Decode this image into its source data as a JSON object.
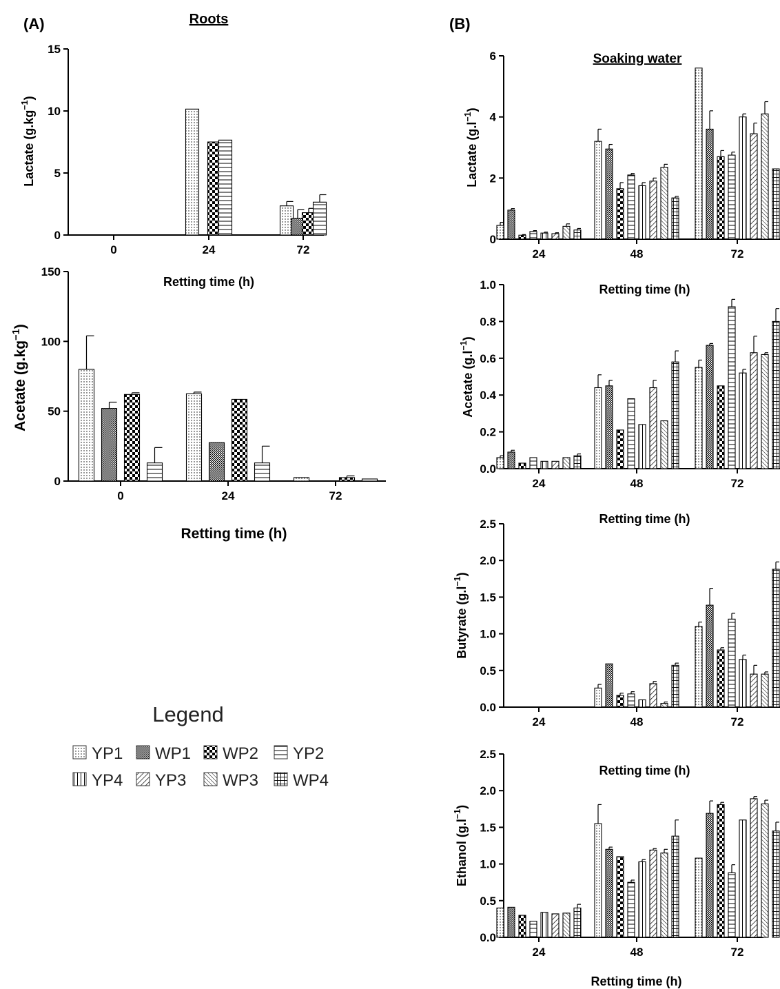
{
  "panels": {
    "A": {
      "label": "(A)",
      "title": "Roots"
    },
    "B": {
      "label": "(B)",
      "title": "Soaking water"
    }
  },
  "legend": {
    "title": "Legend",
    "items": [
      {
        "name": "YP1",
        "pattern": "dots"
      },
      {
        "name": "WP1",
        "pattern": "fine-check"
      },
      {
        "name": "WP2",
        "pattern": "checker"
      },
      {
        "name": "YP2",
        "pattern": "hlines"
      },
      {
        "name": "YP4",
        "pattern": "vlines"
      },
      {
        "name": "YP3",
        "pattern": "diag-right"
      },
      {
        "name": "WP3",
        "pattern": "diag-left"
      },
      {
        "name": "WP4",
        "pattern": "grid"
      }
    ]
  },
  "chart_data": [
    {
      "id": "roots-lactate",
      "panel": "A",
      "type": "bar",
      "ylabel": "Lactate (g.kg",
      "ylabel_sup": "−1",
      "ylabel_end": ")",
      "xlabel": "Retting time (h)",
      "categories": [
        "0",
        "24",
        "72"
      ],
      "ylim": [
        0,
        15
      ],
      "yticks": [
        "0",
        "5",
        "10",
        "15"
      ],
      "tick_values": [
        0,
        5,
        10,
        15
      ],
      "series": [
        {
          "name": "YP1",
          "values": [
            0,
            10.15,
            2.35
          ],
          "errors": [
            0,
            0,
            0.35
          ]
        },
        {
          "name": "WP1",
          "values": [
            0,
            0,
            1.35
          ],
          "errors": [
            0,
            0,
            0.7
          ]
        },
        {
          "name": "WP2",
          "values": [
            0,
            7.5,
            1.8
          ],
          "errors": [
            0,
            0,
            0.35
          ]
        },
        {
          "name": "YP2",
          "values": [
            0,
            7.65,
            2.65
          ],
          "errors": [
            0,
            0,
            0.6
          ]
        }
      ]
    },
    {
      "id": "roots-acetate",
      "panel": "A",
      "type": "bar",
      "ylabel": "Acetate (g.kg",
      "ylabel_sup": "−1",
      "ylabel_end": ")",
      "xlabel": "Retting time (h)",
      "categories": [
        "0",
        "24",
        "72"
      ],
      "ylim": [
        0,
        150
      ],
      "yticks": [
        "0",
        "50",
        "100",
        "150"
      ],
      "tick_values": [
        0,
        50,
        100,
        150
      ],
      "series": [
        {
          "name": "YP1",
          "values": [
            80,
            62.5,
            2.5
          ],
          "errors": [
            24,
            1.2,
            0
          ]
        },
        {
          "name": "WP1",
          "values": [
            52,
            27.5,
            0
          ],
          "errors": [
            4.5,
            0,
            0
          ]
        },
        {
          "name": "WP2",
          "values": [
            62,
            58.5,
            2.5
          ],
          "errors": [
            1.2,
            0,
            1.2
          ]
        },
        {
          "name": "YP2",
          "values": [
            13,
            13,
            1.5
          ],
          "errors": [
            11,
            12,
            0
          ]
        }
      ]
    },
    {
      "id": "water-lactate",
      "panel": "B",
      "type": "bar",
      "ylabel": "Lactate (g.l",
      "ylabel_sup": "−1",
      "ylabel_end": ")",
      "xlabel": "Retting time (h)",
      "categories": [
        "24",
        "48",
        "72"
      ],
      "ylim": [
        0,
        6
      ],
      "yticks": [
        "0",
        "2",
        "4",
        "6"
      ],
      "tick_values": [
        0,
        2,
        4,
        6
      ],
      "series": [
        {
          "name": "YP1",
          "values": [
            0.45,
            3.2,
            5.6
          ],
          "errors": [
            0.1,
            0.4,
            0
          ]
        },
        {
          "name": "WP1",
          "values": [
            0.95,
            2.95,
            3.6
          ],
          "errors": [
            0.05,
            0.15,
            0.6
          ]
        },
        {
          "name": "WP2",
          "values": [
            0.13,
            1.65,
            2.7
          ],
          "errors": [
            0.02,
            0.2,
            0.2
          ]
        },
        {
          "name": "YP2",
          "values": [
            0.25,
            2.1,
            2.75
          ],
          "errors": [
            0.03,
            0.05,
            0.1
          ]
        },
        {
          "name": "YP4",
          "values": [
            0.2,
            1.75,
            4.0
          ],
          "errors": [
            0.03,
            0.1,
            0.1
          ]
        },
        {
          "name": "YP3",
          "values": [
            0.18,
            1.9,
            3.45
          ],
          "errors": [
            0.03,
            0.1,
            0.35
          ]
        },
        {
          "name": "WP3",
          "values": [
            0.42,
            2.35,
            4.1
          ],
          "errors": [
            0.08,
            0.1,
            0.4
          ]
        },
        {
          "name": "WP4",
          "values": [
            0.3,
            1.35,
            2.3
          ],
          "errors": [
            0.05,
            0.05,
            0
          ]
        }
      ]
    },
    {
      "id": "water-acetate",
      "panel": "B",
      "type": "bar",
      "ylabel": "Acetate (g.l",
      "ylabel_sup": "−1",
      "ylabel_end": ")",
      "xlabel": "Retting time (h)",
      "categories": [
        "24",
        "48",
        "72"
      ],
      "ylim": [
        0,
        1.0
      ],
      "yticks": [
        "0.0",
        "0.2",
        "0.4",
        "0.6",
        "0.8",
        "1.0"
      ],
      "tick_values": [
        0,
        0.2,
        0.4,
        0.6,
        0.8,
        1.0
      ],
      "series": [
        {
          "name": "YP1",
          "values": [
            0.06,
            0.44,
            0.55
          ],
          "errors": [
            0.01,
            0.07,
            0.04
          ]
        },
        {
          "name": "WP1",
          "values": [
            0.09,
            0.45,
            0.67
          ],
          "errors": [
            0.01,
            0.03,
            0.01
          ]
        },
        {
          "name": "WP2",
          "values": [
            0.03,
            0.21,
            0.45
          ],
          "errors": [
            0,
            0,
            0
          ]
        },
        {
          "name": "YP2",
          "values": [
            0.06,
            0.38,
            0.88
          ],
          "errors": [
            0,
            0,
            0.04
          ]
        },
        {
          "name": "YP4",
          "values": [
            0.04,
            0.24,
            0.52
          ],
          "errors": [
            0,
            0,
            0.02
          ]
        },
        {
          "name": "YP3",
          "values": [
            0.04,
            0.44,
            0.63
          ],
          "errors": [
            0,
            0.04,
            0.09
          ]
        },
        {
          "name": "WP3",
          "values": [
            0.06,
            0.26,
            0.62
          ],
          "errors": [
            0,
            0,
            0.01
          ]
        },
        {
          "name": "WP4",
          "values": [
            0.07,
            0.58,
            0.8
          ],
          "errors": [
            0.01,
            0.06,
            0.07
          ]
        }
      ]
    },
    {
      "id": "water-butyrate",
      "panel": "B",
      "type": "bar",
      "ylabel": "Butyrate (g.l",
      "ylabel_sup": "−1",
      "ylabel_end": ")",
      "xlabel": "Retting time (h)",
      "categories": [
        "24",
        "48",
        "72"
      ],
      "ylim": [
        0,
        2.5
      ],
      "yticks": [
        "0.0",
        "0.5",
        "1.0",
        "1.5",
        "2.0",
        "2.5"
      ],
      "tick_values": [
        0,
        0.5,
        1.0,
        1.5,
        2.0,
        2.5
      ],
      "series": [
        {
          "name": "YP1",
          "values": [
            0,
            0.26,
            1.1
          ],
          "errors": [
            0,
            0.05,
            0.06
          ]
        },
        {
          "name": "WP1",
          "values": [
            0,
            0.59,
            1.39
          ],
          "errors": [
            0,
            0,
            0.23
          ]
        },
        {
          "name": "WP2",
          "values": [
            0,
            0.16,
            0.78
          ],
          "errors": [
            0,
            0.03,
            0.03
          ]
        },
        {
          "name": "YP2",
          "values": [
            0,
            0.18,
            1.2
          ],
          "errors": [
            0,
            0.03,
            0.08
          ]
        },
        {
          "name": "YP4",
          "values": [
            0,
            0.1,
            0.65
          ],
          "errors": [
            0,
            0,
            0.06
          ]
        },
        {
          "name": "YP3",
          "values": [
            0,
            0.32,
            0.45
          ],
          "errors": [
            0,
            0.03,
            0.12
          ]
        },
        {
          "name": "WP3",
          "values": [
            0,
            0.05,
            0.45
          ],
          "errors": [
            0,
            0.02,
            0.03
          ]
        },
        {
          "name": "WP4",
          "values": [
            0,
            0.57,
            1.88
          ],
          "errors": [
            0,
            0.03,
            0.1
          ]
        }
      ]
    },
    {
      "id": "water-ethanol",
      "panel": "B",
      "type": "bar",
      "ylabel": "Ethanol (g.l",
      "ylabel_sup": "−1",
      "ylabel_end": ")",
      "xlabel": "Retting time (h)",
      "categories": [
        "24",
        "48",
        "72"
      ],
      "ylim": [
        0,
        2.5
      ],
      "yticks": [
        "0.0",
        "0.5",
        "1.0",
        "1.5",
        "2.0",
        "2.5"
      ],
      "tick_values": [
        0,
        0.5,
        1.0,
        1.5,
        2.0,
        2.5
      ],
      "series": [
        {
          "name": "YP1",
          "values": [
            0.4,
            1.55,
            1.08
          ],
          "errors": [
            0,
            0.26,
            0
          ]
        },
        {
          "name": "WP1",
          "values": [
            0.41,
            1.2,
            1.69
          ],
          "errors": [
            0,
            0.03,
            0.17
          ]
        },
        {
          "name": "WP2",
          "values": [
            0.3,
            1.1,
            1.81
          ],
          "errors": [
            0,
            0,
            0.03
          ]
        },
        {
          "name": "YP2",
          "values": [
            0.22,
            0.75,
            0.88
          ],
          "errors": [
            0,
            0.03,
            0.11
          ]
        },
        {
          "name": "YP4",
          "values": [
            0.34,
            1.03,
            1.6
          ],
          "errors": [
            0,
            0.03,
            0
          ]
        },
        {
          "name": "YP3",
          "values": [
            0.32,
            1.19,
            1.89
          ],
          "errors": [
            0,
            0.02,
            0.03
          ]
        },
        {
          "name": "WP3",
          "values": [
            0.33,
            1.15,
            1.82
          ],
          "errors": [
            0,
            0.05,
            0.05
          ]
        },
        {
          "name": "WP4",
          "values": [
            0.4,
            1.38,
            1.45
          ],
          "errors": [
            0.05,
            0.22,
            0.12
          ]
        }
      ]
    }
  ]
}
